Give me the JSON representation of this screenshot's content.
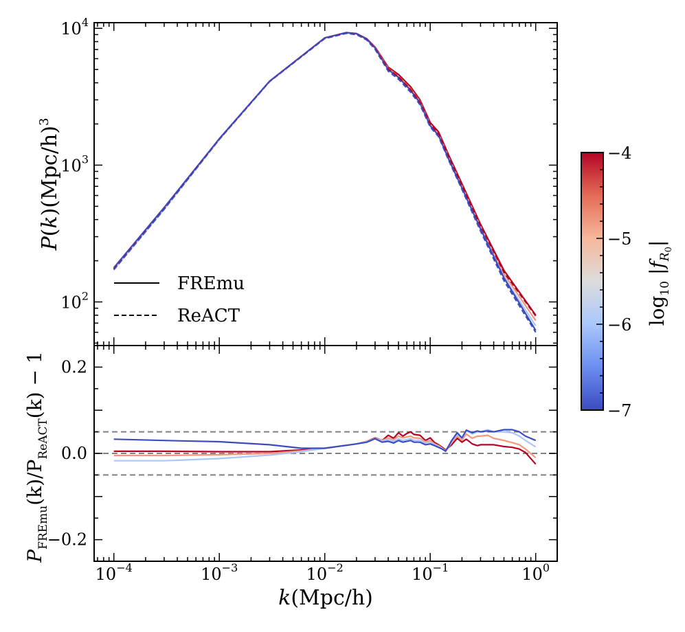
{
  "chart_data": [
    {
      "type": "line",
      "panel": "top",
      "xscale": "log",
      "yscale": "log",
      "xlim": [
        6.5e-05,
        1.6
      ],
      "ylim": [
        48,
        11000
      ],
      "ylabel": {
        "main": "P(k)(Mpc/h)",
        "sup": "3"
      },
      "yticks": [
        {
          "value": 100,
          "base": "10",
          "exp": "2"
        },
        {
          "value": 1000,
          "base": "10",
          "exp": "3"
        },
        {
          "value": 10000,
          "base": "10",
          "exp": "4"
        }
      ],
      "legend": {
        "position": "lower-left",
        "entries": [
          {
            "label": "FREmu",
            "style": "solid"
          },
          {
            "label": "ReACT",
            "style": "dashed"
          }
        ]
      },
      "series": [
        {
          "name": "FREmu log10|fR0|=-4",
          "style": "solid",
          "color": "#b40426",
          "x": [
            0.0001,
            0.0003,
            0.001,
            0.003,
            0.01,
            0.016,
            0.02,
            0.025,
            0.03,
            0.04,
            0.05,
            0.065,
            0.08,
            0.1,
            0.12,
            0.15,
            0.2,
            0.3,
            0.5,
            1.0
          ],
          "y": [
            175,
            480,
            1550,
            4100,
            8500,
            9300,
            9150,
            8400,
            7300,
            5200,
            4600,
            3750,
            3000,
            2050,
            1750,
            1180,
            730,
            370,
            170,
            80
          ]
        },
        {
          "name": "FREmu log10|fR0|=-5",
          "style": "solid",
          "color": "#f4987a",
          "x": [
            0.0001,
            0.0003,
            0.001,
            0.003,
            0.01,
            0.016,
            0.02,
            0.025,
            0.03,
            0.04,
            0.05,
            0.065,
            0.08,
            0.1,
            0.12,
            0.15,
            0.2,
            0.3,
            0.5,
            1.0
          ],
          "y": [
            173,
            477,
            1545,
            4090,
            8490,
            9280,
            9120,
            8350,
            7220,
            5080,
            4450,
            3620,
            2900,
            1980,
            1690,
            1130,
            700,
            355,
            160,
            73
          ]
        },
        {
          "name": "FREmu log10|fR0|=-6",
          "style": "solid",
          "color": "#aac7fd",
          "x": [
            0.0001,
            0.0003,
            0.001,
            0.003,
            0.01,
            0.016,
            0.02,
            0.025,
            0.03,
            0.04,
            0.05,
            0.065,
            0.08,
            0.1,
            0.12,
            0.15,
            0.2,
            0.3,
            0.5,
            1.0
          ],
          "y": [
            172,
            476,
            1542,
            4085,
            8480,
            9270,
            9100,
            8320,
            7180,
            5000,
            4380,
            3540,
            2860,
            1950,
            1660,
            1110,
            685,
            345,
            152,
            67
          ]
        },
        {
          "name": "FREmu log10|fR0|=-7",
          "style": "solid",
          "color": "#3b4cc0",
          "x": [
            0.0001,
            0.0003,
            0.001,
            0.003,
            0.01,
            0.016,
            0.02,
            0.025,
            0.03,
            0.04,
            0.05,
            0.065,
            0.08,
            0.1,
            0.12,
            0.15,
            0.2,
            0.3,
            0.5,
            1.0
          ],
          "y": [
            178,
            490,
            1560,
            4110,
            8520,
            9310,
            9140,
            8340,
            7190,
            4990,
            4370,
            3530,
            2850,
            1940,
            1650,
            1100,
            680,
            342,
            150,
            62
          ]
        },
        {
          "name": "ReACT log10|fR0|=-4",
          "style": "dashed",
          "color": "#b40426",
          "x": [
            0.0001,
            0.0003,
            0.001,
            0.003,
            0.01,
            0.016,
            0.02,
            0.025,
            0.03,
            0.04,
            0.05,
            0.065,
            0.08,
            0.1,
            0.12,
            0.15,
            0.2,
            0.3,
            0.5,
            1.0
          ],
          "y": [
            174,
            478,
            1548,
            4095,
            8460,
            9230,
            9050,
            8300,
            7150,
            5050,
            4430,
            3580,
            2880,
            1990,
            1690,
            1150,
            710,
            360,
            165,
            79
          ]
        },
        {
          "name": "ReACT log10|fR0|=-7",
          "style": "dashed",
          "color": "#3b4cc0",
          "x": [
            0.0001,
            0.0003,
            0.001,
            0.003,
            0.01,
            0.016,
            0.02,
            0.025,
            0.03,
            0.04,
            0.05,
            0.065,
            0.08,
            0.1,
            0.12,
            0.15,
            0.2,
            0.3,
            0.5,
            1.0
          ],
          "y": [
            172,
            476,
            1544,
            4088,
            8420,
            9200,
            9010,
            8220,
            7030,
            4860,
            4250,
            3420,
            2770,
            1900,
            1620,
            1080,
            665,
            330,
            143,
            60
          ]
        }
      ]
    },
    {
      "type": "line",
      "panel": "bottom",
      "xscale": "log",
      "yscale": "linear",
      "xlim": [
        6.5e-05,
        1.6
      ],
      "ylim": [
        -0.25,
        0.25
      ],
      "xlabel": "k(Mpc/h)",
      "ylabel": {
        "main": "P",
        "sub1": "FREmu",
        "mid": "(k)/P",
        "sub2": "ReACT",
        "end": "(k) − 1"
      },
      "xticks": [
        {
          "value": 0.0001,
          "base": "10",
          "exp": "−4"
        },
        {
          "value": 0.001,
          "base": "10",
          "exp": "−3"
        },
        {
          "value": 0.01,
          "base": "10",
          "exp": "−2"
        },
        {
          "value": 0.1,
          "base": "10",
          "exp": "−1"
        },
        {
          "value": 1,
          "base": "10",
          "exp": "0"
        }
      ],
      "yticks": [
        {
          "value": 0.2,
          "label": "0.2"
        },
        {
          "value": 0.0,
          "label": "0.0"
        },
        {
          "value": -0.2,
          "label": "−0.2"
        }
      ],
      "reference_lines": [
        0.05,
        0.0,
        -0.05
      ],
      "series": [
        {
          "name": "log10|fR0|=-4",
          "color": "#b40426",
          "x": [
            0.0001,
            0.0003,
            0.001,
            0.003,
            0.006,
            0.01,
            0.02,
            0.025,
            0.03,
            0.035,
            0.04,
            0.045,
            0.05,
            0.055,
            0.06,
            0.065,
            0.07,
            0.08,
            0.09,
            0.1,
            0.11,
            0.12,
            0.13,
            0.14,
            0.16,
            0.18,
            0.2,
            0.22,
            0.25,
            0.28,
            0.3,
            0.35,
            0.4,
            0.5,
            0.6,
            0.7,
            0.8,
            1.0
          ],
          "y": [
            0.005,
            0.005,
            0.004,
            0.004,
            0.008,
            0.012,
            0.022,
            0.028,
            0.036,
            0.03,
            0.042,
            0.035,
            0.048,
            0.04,
            0.046,
            0.05,
            0.044,
            0.042,
            0.03,
            0.036,
            0.025,
            0.02,
            0.014,
            0.008,
            0.02,
            0.035,
            0.026,
            0.033,
            0.022,
            0.018,
            0.02,
            0.02,
            0.02,
            0.016,
            0.014,
            0.01,
            0.002,
            -0.025
          ]
        },
        {
          "name": "log10|fR0|=-5",
          "color": "#f4987a",
          "x": [
            0.0001,
            0.0003,
            0.001,
            0.003,
            0.006,
            0.01,
            0.02,
            0.025,
            0.03,
            0.035,
            0.04,
            0.045,
            0.05,
            0.055,
            0.06,
            0.065,
            0.07,
            0.08,
            0.09,
            0.1,
            0.11,
            0.12,
            0.13,
            0.14,
            0.16,
            0.18,
            0.2,
            0.22,
            0.25,
            0.28,
            0.3,
            0.35,
            0.4,
            0.5,
            0.6,
            0.7,
            0.8,
            1.0
          ],
          "y": [
            -0.005,
            -0.005,
            -0.003,
            0.0,
            0.006,
            0.012,
            0.022,
            0.028,
            0.035,
            0.03,
            0.036,
            0.032,
            0.04,
            0.036,
            0.038,
            0.04,
            0.036,
            0.035,
            0.027,
            0.03,
            0.022,
            0.018,
            0.012,
            0.006,
            0.025,
            0.04,
            0.03,
            0.045,
            0.035,
            0.04,
            0.04,
            0.042,
            0.035,
            0.03,
            0.025,
            0.02,
            0.01,
            -0.01
          ]
        },
        {
          "name": "log10|fR0|=-6",
          "color": "#aac7fd",
          "x": [
            0.0001,
            0.0003,
            0.001,
            0.003,
            0.006,
            0.01,
            0.02,
            0.025,
            0.03,
            0.035,
            0.04,
            0.045,
            0.05,
            0.055,
            0.06,
            0.065,
            0.07,
            0.08,
            0.09,
            0.1,
            0.11,
            0.12,
            0.13,
            0.14,
            0.16,
            0.18,
            0.2,
            0.22,
            0.25,
            0.28,
            0.3,
            0.35,
            0.4,
            0.5,
            0.6,
            0.7,
            0.8,
            1.0
          ],
          "y": [
            -0.017,
            -0.017,
            -0.012,
            -0.004,
            0.004,
            0.012,
            0.022,
            0.027,
            0.034,
            0.028,
            0.032,
            0.028,
            0.034,
            0.03,
            0.032,
            0.034,
            0.03,
            0.03,
            0.024,
            0.026,
            0.02,
            0.016,
            0.011,
            0.006,
            0.028,
            0.045,
            0.034,
            0.052,
            0.045,
            0.05,
            0.05,
            0.055,
            0.05,
            0.05,
            0.048,
            0.04,
            0.03,
            0.015
          ]
        },
        {
          "name": "log10|fR0|=-7",
          "color": "#3b4cc0",
          "x": [
            0.0001,
            0.0003,
            0.001,
            0.003,
            0.006,
            0.01,
            0.02,
            0.025,
            0.03,
            0.035,
            0.04,
            0.045,
            0.05,
            0.055,
            0.06,
            0.065,
            0.07,
            0.08,
            0.09,
            0.1,
            0.11,
            0.12,
            0.13,
            0.14,
            0.16,
            0.18,
            0.2,
            0.22,
            0.25,
            0.28,
            0.3,
            0.35,
            0.4,
            0.5,
            0.6,
            0.7,
            0.8,
            1.0
          ],
          "y": [
            0.033,
            0.03,
            0.027,
            0.02,
            0.012,
            0.012,
            0.022,
            0.026,
            0.034,
            0.026,
            0.028,
            0.024,
            0.03,
            0.026,
            0.028,
            0.03,
            0.026,
            0.026,
            0.02,
            0.022,
            0.018,
            0.014,
            0.01,
            0.005,
            0.03,
            0.048,
            0.036,
            0.054,
            0.048,
            0.052,
            0.05,
            0.052,
            0.05,
            0.055,
            0.055,
            0.05,
            0.04,
            0.03
          ]
        }
      ]
    }
  ],
  "colorbar": {
    "label": "log10|fR0|",
    "label_parts": {
      "a": "log",
      "sub": "10",
      "b": " |f",
      "sub2": "R",
      "sub3": "0",
      "c": "|"
    },
    "range": [
      -7,
      -4
    ],
    "colors": [
      "#3b4cc0",
      "#6b8df0",
      "#aac7fd",
      "#dddcdc",
      "#f7b89c",
      "#e36c55",
      "#b40426"
    ],
    "ticks": [
      {
        "value": -4,
        "label": "−4"
      },
      {
        "value": -5,
        "label": "−5"
      },
      {
        "value": -6,
        "label": "−6"
      },
      {
        "value": -7,
        "label": "−7"
      }
    ]
  }
}
